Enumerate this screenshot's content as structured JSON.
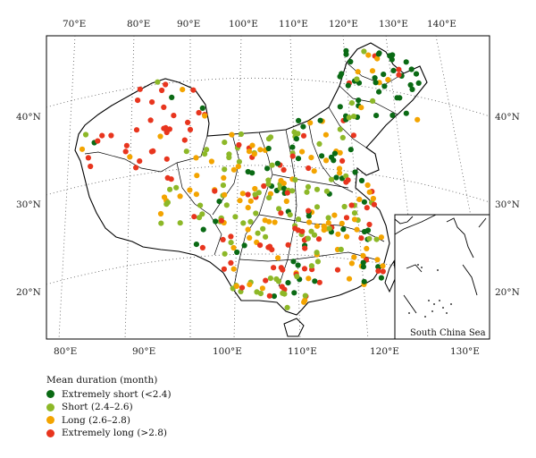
{
  "map": {
    "top_lon_labels": [
      "70°E",
      "80°E",
      "90°E",
      "100°E",
      "110°E",
      "120°E",
      "130°E",
      "140°E"
    ],
    "bottom_lon_labels": [
      "80°E",
      "90°E",
      "100°E",
      "110°E",
      "120°E",
      "130°E"
    ],
    "left_lat_labels": [
      "40°N",
      "30°N",
      "20°N"
    ],
    "right_lat_labels": [
      "40°N",
      "30°N",
      "20°N"
    ],
    "inset_label": "South China Sea"
  },
  "legend": {
    "title": "Mean duration (month)",
    "items": [
      {
        "label": "Extremely short (<2.4)",
        "color": "#0a6a14"
      },
      {
        "label": "Short (2.4–2.6)",
        "color": "#8db828"
      },
      {
        "label": "Long (2.6–2.8)",
        "color": "#f3a400"
      },
      {
        "label": "Extremely long (>2.8)",
        "color": "#e8351e"
      }
    ]
  }
}
